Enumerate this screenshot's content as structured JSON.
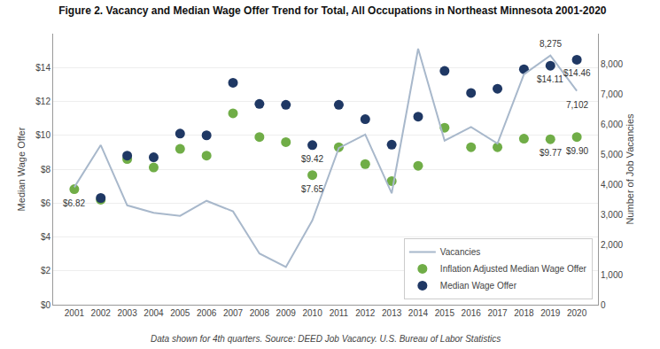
{
  "chart_data": {
    "type": "line",
    "title": "Figure 2. Vacancy and Median Wage Offer Trend for Total, All Occupations in Northeast Minnesota 2001-2020",
    "footnote": "Data shown for 4th quarters. Source: DEED Job Vacancy. U.S. Bureau of Labor Statistics",
    "ylabel": "Median Wage Offer",
    "y2label": "Number of Job Vacancies",
    "x": [
      2001,
      2002,
      2003,
      2004,
      2005,
      2006,
      2007,
      2008,
      2009,
      2010,
      2011,
      2012,
      2013,
      2014,
      2015,
      2016,
      2017,
      2018,
      2019,
      2020
    ],
    "series": [
      {
        "name": "Vacancies",
        "type": "line",
        "axis": "y2",
        "color": "#a8b8cb",
        "line_style": "solid",
        "values": [
          3900,
          5300,
          3300,
          3050,
          2950,
          3450,
          3100,
          1700,
          1250,
          2800,
          5200,
          5650,
          3700,
          8500,
          5450,
          5900,
          5350,
          7650,
          8275,
          7102
        ]
      },
      {
        "name": "Inflation Adjusted Median Wage Offer",
        "type": "scatter",
        "axis": "y",
        "marker": "circle",
        "color": "#70ad47",
        "values": [
          6.82,
          6.2,
          8.6,
          8.1,
          9.2,
          8.8,
          11.3,
          9.9,
          9.6,
          7.65,
          9.3,
          8.3,
          7.3,
          8.2,
          10.45,
          9.3,
          9.3,
          9.8,
          9.77,
          9.9
        ]
      },
      {
        "name": "Median Wage Offer",
        "type": "scatter",
        "axis": "y",
        "marker": "circle",
        "color": "#1f3864",
        "values": [
          null,
          6.3,
          8.8,
          8.7,
          10.1,
          10.0,
          13.1,
          11.85,
          11.8,
          9.42,
          11.8,
          10.95,
          9.45,
          11.1,
          13.8,
          12.5,
          12.75,
          13.9,
          14.11,
          14.46
        ]
      }
    ],
    "xlim": [
      2000.2,
      2020.8
    ],
    "xticks": [
      2001,
      2002,
      2003,
      2004,
      2005,
      2006,
      2007,
      2008,
      2009,
      2010,
      2011,
      2012,
      2013,
      2014,
      2015,
      2016,
      2017,
      2018,
      2019,
      2020
    ],
    "ylim": [
      0,
      16
    ],
    "yticks": [
      {
        "value": 0,
        "label": "$0"
      },
      {
        "value": 2,
        "label": "$2"
      },
      {
        "value": 4,
        "label": "$4"
      },
      {
        "value": 6,
        "label": "$6"
      },
      {
        "value": 8,
        "label": "$8"
      },
      {
        "value": 10,
        "label": "$10"
      },
      {
        "value": 12,
        "label": "$12"
      },
      {
        "value": 14,
        "label": "$14"
      }
    ],
    "y2lim": [
      0,
      9000
    ],
    "y2ticks": [
      0,
      {
        "value": 1000,
        "label": "1,000"
      },
      {
        "value": 2000,
        "label": "2,000"
      },
      {
        "value": 3000,
        "label": "3,000"
      },
      {
        "value": 4000,
        "label": "4,000"
      },
      {
        "value": 5000,
        "label": "5,000"
      },
      {
        "value": 6000,
        "label": "6,000"
      },
      {
        "value": 7000,
        "label": "7,000"
      },
      {
        "value": 8000,
        "label": "8,000"
      }
    ],
    "annotations": [
      {
        "text": "8,275",
        "x": 2019,
        "y": 8275,
        "axis": "y2"
      },
      {
        "text": "7,102",
        "x": 2020,
        "y": 7102,
        "axis": "y2"
      },
      {
        "text": "$6.82",
        "x": 2001,
        "y": 6.82,
        "axis": "y"
      },
      {
        "text": "$7.65",
        "x": 2010,
        "y": 7.65,
        "axis": "y"
      },
      {
        "text": "$9.42",
        "x": 2010,
        "y": 9.42,
        "axis": "y"
      },
      {
        "text": "$14.11",
        "x": 2019,
        "y": 14.11,
        "axis": "y"
      },
      {
        "text": "$14.46",
        "x": 2020,
        "y": 14.46,
        "axis": "y"
      },
      {
        "text": "$9.77",
        "x": 2019,
        "y": 9.77,
        "axis": "y"
      },
      {
        "text": "$9.90",
        "x": 2020,
        "y": 9.9,
        "axis": "y"
      }
    ],
    "grid": true,
    "legend": "lower right"
  }
}
